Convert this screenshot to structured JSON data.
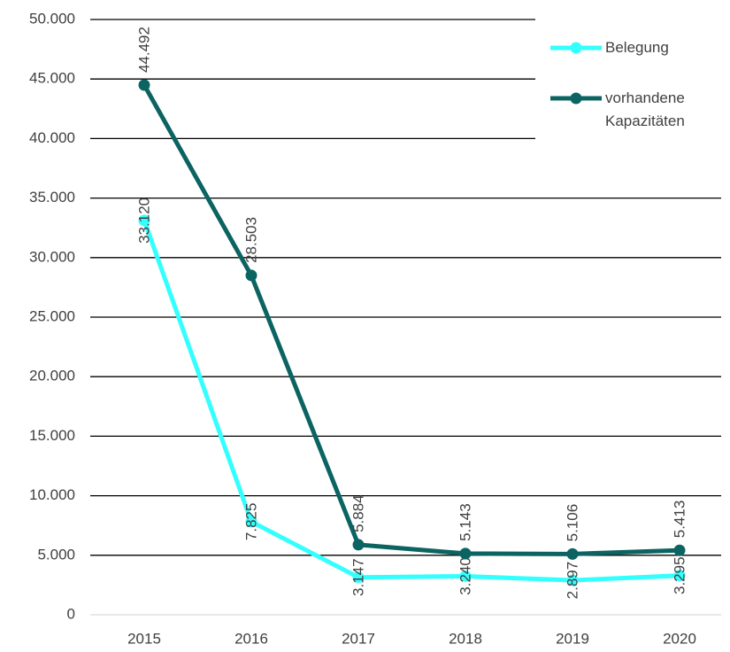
{
  "chart_data": {
    "type": "line",
    "categories": [
      "2015",
      "2016",
      "2017",
      "2018",
      "2019",
      "2020"
    ],
    "series": [
      {
        "name": "Belegung",
        "color": "#33ffff",
        "values": [
          33120,
          7825,
          3147,
          3240,
          2897,
          3295
        ],
        "value_labels": [
          "33.120",
          "7.825",
          "3.147",
          "3.240",
          "2.897",
          "3.295"
        ]
      },
      {
        "name": "vorhandene Kapazitäten",
        "color": "#0b6461",
        "values": [
          44492,
          28503,
          5884,
          5143,
          5106,
          5413
        ],
        "value_labels": [
          "44.492",
          "28.503",
          "5.884",
          "5.143",
          "5.106",
          "5.413"
        ]
      }
    ],
    "ylim": [
      0,
      50000
    ],
    "yticks": [
      0,
      {
        "value": 5000,
        "label": "5.000"
      },
      {
        "value": 10000,
        "label": "10.000"
      },
      {
        "value": 15000,
        "label": "15.000"
      },
      {
        "value": 20000,
        "label": "20.000"
      },
      {
        "value": 25000,
        "label": "25.000"
      },
      {
        "value": 30000,
        "label": "30.000"
      },
      {
        "value": 35000,
        "label": "35.000"
      },
      {
        "value": 40000,
        "label": "40.000"
      },
      {
        "value": 45000,
        "label": "45.000"
      },
      {
        "value": 50000,
        "label": "50.000"
      }
    ],
    "grid": true,
    "legend": "top-right"
  }
}
